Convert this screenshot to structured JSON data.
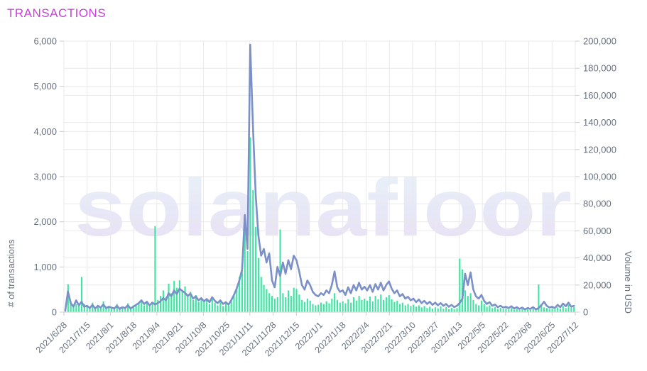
{
  "page": {
    "title": "TRANSACTIONS",
    "title_color": "#c643d6",
    "background": "#ffffff",
    "watermark": "solanafloor"
  },
  "chart_data": {
    "type": "bar",
    "subtype": "dual-axis line + bar, daily data 2021/6/28 - 2022/7/18",
    "title": "TRANSACTIONS",
    "grid": true,
    "legend_position": "none",
    "x_tick_labels": [
      "2021/6/28",
      "2021/7/15",
      "2021/8/1",
      "2021/8/18",
      "2021/9/4",
      "2021/9/21",
      "2021/10/8",
      "2021/10/25",
      "2021/11/11",
      "2021/11/28",
      "2021/12/15",
      "2022/1/1",
      "2022/1/18",
      "2022/2/4",
      "2022/2/21",
      "2022/3/10",
      "2022/3/27",
      "2022/4/13",
      "2022/5/5",
      "2022/5/22",
      "2022/6/8",
      "2022/6/25",
      "2022/7/12"
    ],
    "left_axis": {
      "label": "# of transactions",
      "min": 0,
      "max": 6000,
      "tick_step": 1000,
      "tick_labels": [
        "0",
        "1,000",
        "2,000",
        "3,000",
        "4,000",
        "5,000",
        "6,000"
      ]
    },
    "right_axis": {
      "label": "Volume in USD",
      "min": 0,
      "max": 200000,
      "tick_step": 20000,
      "tick_labels": [
        "0",
        "20,000",
        "40,000",
        "60,000",
        "80,000",
        "100,000",
        "120,000",
        "140,000",
        "160,000",
        "180,000",
        "200,000"
      ]
    },
    "series": [
      {
        "name": "# of transactions",
        "type": "line",
        "axis": "left",
        "color": "#7b90c8",
        "values": [
          35,
          460,
          200,
          120,
          260,
          150,
          230,
          120,
          140,
          90,
          160,
          80,
          140,
          100,
          170,
          90,
          120,
          100,
          80,
          140,
          70,
          110,
          90,
          150,
          80,
          120,
          160,
          200,
          260,
          180,
          230,
          150,
          210,
          170,
          200,
          240,
          310,
          260,
          420,
          350,
          480,
          400,
          520,
          470,
          430,
          360,
          410,
          300,
          350,
          260,
          310,
          240,
          290,
          220,
          330,
          250,
          200,
          260,
          180,
          220,
          170,
          260,
          380,
          520,
          700,
          950,
          2150,
          1400,
          5920,
          4100,
          2600,
          1700,
          1250,
          1400,
          1100,
          1300,
          700,
          550,
          1000,
          800,
          1100,
          850,
          1150,
          950,
          1250,
          1150,
          900,
          600,
          500,
          700,
          600,
          450,
          380,
          350,
          420,
          380,
          480,
          420,
          600,
          900,
          550,
          450,
          480,
          380,
          550,
          420,
          600,
          480,
          650,
          500,
          560,
          480,
          600,
          450,
          620,
          500,
          650,
          480,
          600,
          680,
          520,
          420,
          480,
          350,
          400,
          300,
          340,
          260,
          300,
          220,
          280,
          200,
          250,
          180,
          230,
          160,
          210,
          150,
          200,
          140,
          180,
          120,
          160,
          110,
          140,
          200,
          300,
          850,
          600,
          880,
          500,
          350,
          300,
          380,
          250,
          180,
          220,
          140,
          170,
          110,
          140,
          100,
          120,
          90,
          130,
          80,
          110,
          70,
          100,
          60,
          90,
          70,
          110,
          60,
          90,
          150,
          230,
          140,
          100,
          120,
          90,
          160,
          110,
          190,
          130,
          210,
          120,
          140
        ]
      },
      {
        "name": "Volume in USD",
        "type": "bar",
        "axis": "right",
        "color": "#3ee5a2",
        "values": [
          2500,
          20600,
          8000,
          4000,
          6000,
          5000,
          26000,
          6000,
          4000,
          3000,
          7000,
          2500,
          5000,
          3500,
          8000,
          3000,
          4500,
          3500,
          2500,
          6000,
          2000,
          4000,
          3000,
          6500,
          2500,
          5000,
          5500,
          7000,
          9000,
          5000,
          8000,
          4500,
          7500,
          63500,
          9000,
          12000,
          16000,
          11000,
          21000,
          14000,
          23000,
          18000,
          23500,
          16000,
          19000,
          12000,
          15000,
          9000,
          12500,
          7500,
          10000,
          8000,
          9000,
          6000,
          11000,
          7000,
          5000,
          8500,
          4500,
          6500,
          5000,
          8000,
          12000,
          18000,
          26000,
          35000,
          71000,
          45000,
          129000,
          90000,
          63000,
          40000,
          26000,
          20000,
          17000,
          14000,
          12000,
          10000,
          11000,
          61000,
          14000,
          11000,
          16000,
          12000,
          18000,
          17000,
          13000,
          9000,
          7500,
          10000,
          8500,
          6000,
          5000,
          5500,
          7000,
          6000,
          8000,
          6500,
          10000,
          14000,
          9000,
          7000,
          8000,
          6500,
          9500,
          7000,
          11000,
          8500,
          12000,
          9000,
          10000,
          8500,
          11500,
          8000,
          12000,
          9500,
          13000,
          9000,
          11000,
          12500,
          9500,
          7500,
          8500,
          6000,
          7000,
          5000,
          6000,
          4500,
          5500,
          4000,
          5000,
          3500,
          4500,
          3000,
          4000,
          2500,
          3500,
          2800,
          4200,
          2500,
          3800,
          2200,
          3200,
          2000,
          3000,
          39500,
          31500,
          16000,
          12000,
          14000,
          9000,
          6000,
          5000,
          8500,
          6000,
          4000,
          5000,
          3000,
          3800,
          2500,
          3200,
          2200,
          2800,
          2000,
          3000,
          1800,
          2500,
          1500,
          2200,
          1300,
          2000,
          1600,
          2600,
          1400,
          20500,
          5000,
          3500,
          3000,
          2200,
          2800,
          2000,
          3500,
          2500,
          4500,
          3000,
          5500,
          3200,
          3800
        ]
      }
    ],
    "colors": {
      "grid": "#e9e9e9",
      "axis_line": "#d8d8d8",
      "tick_mark": "#cccccc",
      "tick_text": "#68707f",
      "watermark_top": "#e9f3f7",
      "watermark_bottom": "#ebdff4"
    }
  }
}
